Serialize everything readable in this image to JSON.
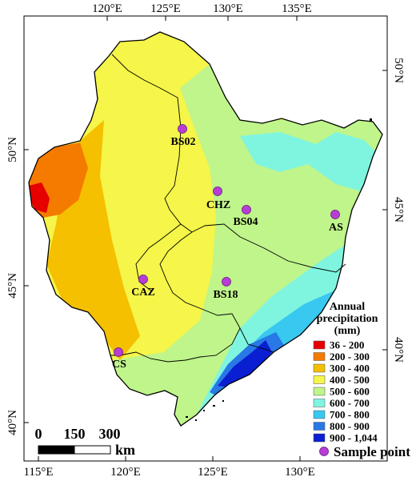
{
  "axes": {
    "top": [
      "120°E",
      "125°E",
      "130°E",
      "135°E"
    ],
    "bottom": [
      "115°E",
      "120°E",
      "125°E",
      "130°E"
    ],
    "left": [
      "50°N",
      "45°N",
      "40°N"
    ],
    "right": [
      "50°N",
      "45°N",
      "40°N"
    ]
  },
  "sites": [
    {
      "name": "BS02"
    },
    {
      "name": "CHZ"
    },
    {
      "name": "BS04"
    },
    {
      "name": "AS"
    },
    {
      "name": "CAZ"
    },
    {
      "name": "BS18"
    },
    {
      "name": "CS"
    }
  ],
  "legend": {
    "title_line1": "Annual",
    "title_line2": "precipitation",
    "title_line3": "(mm)",
    "classes": [
      {
        "label": "36 - 200",
        "color": "#e60000"
      },
      {
        "label": "200 - 300",
        "color": "#f57a00"
      },
      {
        "label": "300 - 400",
        "color": "#f5c000"
      },
      {
        "label": "400 - 500",
        "color": "#f5f54a"
      },
      {
        "label": "500 - 600",
        "color": "#bff58a"
      },
      {
        "label": "600 - 700",
        "color": "#7ff5e0"
      },
      {
        "label": "700 - 800",
        "color": "#38c8f0"
      },
      {
        "label": "800 - 900",
        "color": "#2878e6"
      },
      {
        "label": "900 - 1,044",
        "color": "#0a1ed2"
      }
    ],
    "sample_point_label": "Sample point",
    "sample_point_color": "#b83dd6"
  },
  "scale_bar": {
    "ticks": [
      "0",
      "150",
      "300"
    ],
    "unit": "km"
  }
}
